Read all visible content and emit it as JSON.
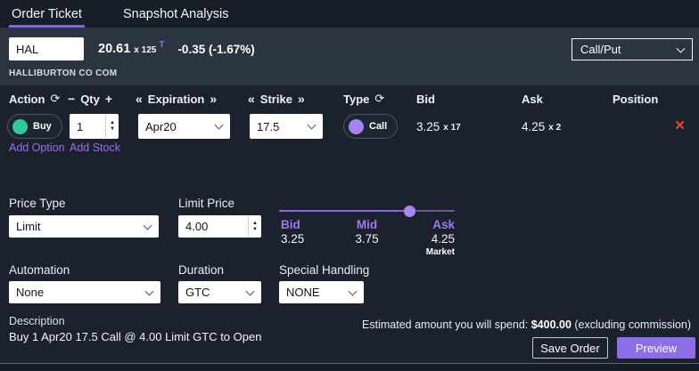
{
  "colors": {
    "accent_purple": "#8B63E8",
    "link_purple": "#9B6DF2",
    "buy_green": "#2BCB9B",
    "call_purple": "#A583F4",
    "remove_red": "#F0422F",
    "preview_button_bg": "#8D6EE6",
    "top_bar_bg": "#171E28",
    "ticker_bar_bg": "#2B3441",
    "main_bg": "#1B222D"
  },
  "icons": {
    "refresh": "⟳",
    "minus": "−",
    "plus": "+",
    "prev": "«",
    "next": "»",
    "step_up": "▲",
    "step_down": "▼",
    "remove": "×"
  },
  "tabs": {
    "order_ticket": "Order Ticket",
    "snapshot_analysis": "Snapshot Analysis"
  },
  "ticker": {
    "symbol": "HAL",
    "last_price": "20.61",
    "last_size": "x 125",
    "exchange": "T",
    "change": "-0.35 (-1.67%)",
    "company_name": "HALLIBURTON CO COM",
    "chain_view": "Call/Put"
  },
  "legs": {
    "headers": {
      "action": "Action",
      "qty": "Qty",
      "expiration": "Expiration",
      "strike": "Strike",
      "type": "Type",
      "bid": "Bid",
      "ask": "Ask",
      "position": "Position"
    },
    "row": {
      "action": "Buy",
      "qty": "1",
      "expiration": "Apr20",
      "strike": "17.5",
      "type": "Call",
      "bid": "3.25",
      "bid_size": "x 17",
      "ask": "4.25",
      "ask_size": "x 2",
      "position": ""
    },
    "add_option": "Add Option",
    "add_stock": "Add Stock"
  },
  "pricing": {
    "price_type_label": "Price Type",
    "price_type": "Limit",
    "limit_price_label": "Limit Price",
    "limit_price": "4.00",
    "slider": {
      "bid_label": "Bid",
      "mid_label": "Mid",
      "ask_label": "Ask",
      "bid": "3.25",
      "mid": "3.75",
      "ask": "4.25",
      "market_label": "Market",
      "position_pct": 74.6
    }
  },
  "settings": {
    "automation_label": "Automation",
    "automation": "None",
    "duration_label": "Duration",
    "duration": "GTC",
    "special_handling_label": "Special Handling",
    "special_handling": "NONE"
  },
  "footer": {
    "description_label": "Description",
    "description": "Buy 1 Apr20 17.5 Call @ 4.00 Limit GTC to Open",
    "estimate_prefix": "Estimated amount you will spend: ",
    "estimate_amount": "$400.00",
    "estimate_suffix": " (excluding commission)",
    "save_order": "Save Order",
    "preview": "Preview"
  }
}
